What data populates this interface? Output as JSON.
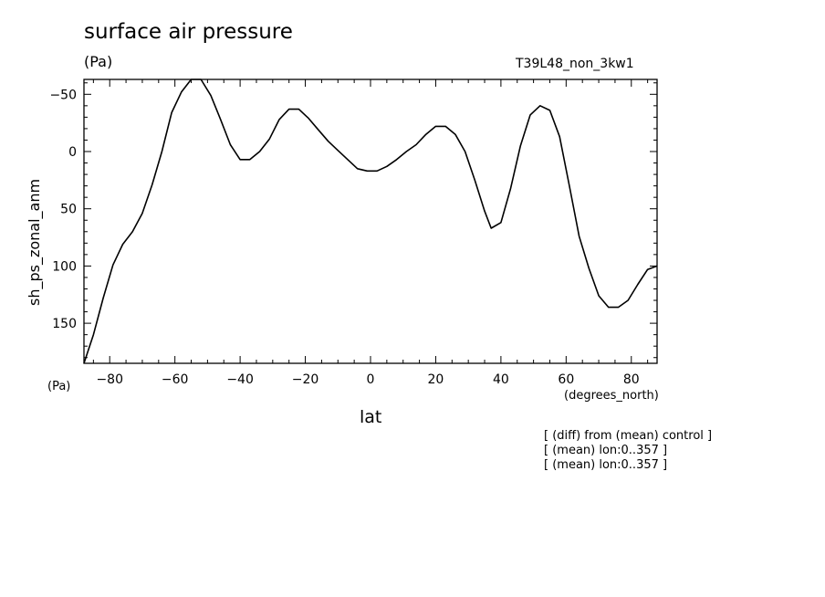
{
  "header": {
    "title": "surface air pressure",
    "units": "(Pa)",
    "run_id": "T39L48_non_3kw1"
  },
  "axes": {
    "y_units": "(Pa)",
    "x_units": "(degrees_north)",
    "xlabel": "lat",
    "ylabel": "sh_ps_zonal_anm"
  },
  "notes": [
    "[ (diff) from (mean) control ]",
    "[ (mean) lon:0..357 ]",
    "[ (mean) lon:0..357 ]"
  ],
  "chart_data": {
    "type": "line",
    "title": "surface air pressure",
    "xlabel": "lat",
    "ylabel": "sh_ps_zonal_anm",
    "xlim": [
      -87.9,
      87.9
    ],
    "ylim": [
      185,
      -63
    ],
    "y_inverted": true,
    "grid": false,
    "line_color": "#000000",
    "x_ticks": [
      -80,
      -60,
      -40,
      -20,
      0,
      20,
      40,
      60,
      80
    ],
    "x_tick_labels": [
      "−80",
      "−60",
      "−40",
      "−20",
      "0",
      "20",
      "40",
      "60",
      "80"
    ],
    "y_ticks": [
      -50,
      0,
      50,
      100,
      150
    ],
    "y_tick_labels": [
      "−50",
      "0",
      "50",
      "100",
      "150"
    ],
    "series": [
      {
        "x": [
          -87.9,
          -85,
          -82,
          -79,
          -76,
          -73,
          -70,
          -67,
          -64,
          -61,
          -58,
          -55,
          -52,
          -49,
          -46,
          -43,
          -40,
          -37,
          -34,
          -31,
          -28,
          -25,
          -22,
          -19,
          -16,
          -13,
          -10,
          -7,
          -4,
          -1,
          2,
          5,
          8,
          11,
          14,
          17,
          20,
          23,
          26,
          29,
          32,
          35,
          37,
          40,
          43,
          46,
          49,
          52,
          55,
          58,
          61,
          64,
          67,
          70,
          73,
          76,
          79,
          82,
          85,
          87.9
        ],
        "y": [
          185,
          160,
          128,
          99,
          81,
          70,
          54,
          29,
          0,
          -34,
          -52,
          -63,
          -63,
          -49,
          -28,
          -6,
          7,
          7,
          0,
          -11,
          -28,
          -37,
          -37,
          -29,
          -19,
          -9,
          -1,
          7,
          15,
          17,
          17,
          13,
          7,
          0,
          -6,
          -15,
          -22,
          -22,
          -15,
          0,
          25,
          52,
          67,
          62,
          32,
          -5,
          -32,
          -40,
          -36,
          -13,
          30,
          74,
          102,
          126,
          136,
          136,
          130,
          116,
          103,
          100
        ]
      }
    ]
  }
}
